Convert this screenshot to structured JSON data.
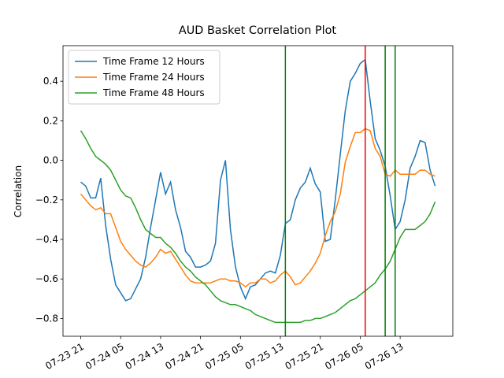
{
  "chart_data": {
    "type": "line",
    "title": "AUD Basket Correlation Plot",
    "y_label": "Correlation",
    "x": [
      "07-23 21",
      "07-23 22",
      "07-23 23",
      "07-24 00",
      "07-24 01",
      "07-24 02",
      "07-24 03",
      "07-24 04",
      "07-24 05",
      "07-24 06",
      "07-24 07",
      "07-24 08",
      "07-24 09",
      "07-24 10",
      "07-24 11",
      "07-24 12",
      "07-24 13",
      "07-24 14",
      "07-24 15",
      "07-24 16",
      "07-24 17",
      "07-24 18",
      "07-24 19",
      "07-24 20",
      "07-24 21",
      "07-24 22",
      "07-24 23",
      "07-25 00",
      "07-25 01",
      "07-25 02",
      "07-25 03",
      "07-25 04",
      "07-25 05",
      "07-25 06",
      "07-25 07",
      "07-25 08",
      "07-25 09",
      "07-25 10",
      "07-25 11",
      "07-25 12",
      "07-25 13",
      "07-25 14",
      "07-25 15",
      "07-25 16",
      "07-25 17",
      "07-25 18",
      "07-25 19",
      "07-25 20",
      "07-25 21",
      "07-25 22",
      "07-25 23",
      "07-26 00",
      "07-26 01",
      "07-26 02",
      "07-26 03",
      "07-26 04",
      "07-26 05",
      "07-26 06",
      "07-26 07",
      "07-26 08",
      "07-26 09",
      "07-26 10",
      "07-26 11",
      "07-26 12",
      "07-26 13",
      "07-26 14",
      "07-26 15",
      "07-26 16",
      "07-26 17",
      "07-26 18",
      "07-26 19",
      "07-26 20"
    ],
    "xticks": [
      "07-23 21",
      "07-24 05",
      "07-24 13",
      "07-24 21",
      "07-25 05",
      "07-25 13",
      "07-25 21",
      "07-26 05",
      "07-26 13"
    ],
    "ylim": [
      -0.89,
      0.58
    ],
    "yticks": [
      {
        "value": -0.8,
        "label": "−0.8"
      },
      {
        "value": -0.6,
        "label": "−0.6"
      },
      {
        "value": -0.4,
        "label": "−0.4"
      },
      {
        "value": -0.2,
        "label": "−0.2"
      },
      {
        "value": 0,
        "label": "0.0"
      },
      0.2,
      0.4
    ],
    "legend": "upper left",
    "series": [
      {
        "name": "Time Frame 12 Hours",
        "color": "#1f77b4",
        "values": [
          -0.11,
          -0.13,
          -0.19,
          -0.19,
          -0.09,
          -0.33,
          -0.5,
          -0.63,
          -0.67,
          -0.71,
          -0.7,
          -0.65,
          -0.6,
          -0.49,
          -0.34,
          -0.2,
          -0.06,
          -0.17,
          -0.11,
          -0.25,
          -0.34,
          -0.46,
          -0.49,
          -0.54,
          -0.54,
          -0.53,
          -0.51,
          -0.42,
          -0.1,
          0.0,
          -0.35,
          -0.54,
          -0.64,
          -0.7,
          -0.64,
          -0.63,
          -0.6,
          -0.57,
          -0.56,
          -0.57,
          -0.48,
          -0.32,
          -0.3,
          -0.2,
          -0.14,
          -0.11,
          -0.04,
          -0.12,
          -0.16,
          -0.41,
          -0.4,
          -0.2,
          0.03,
          0.25,
          0.4,
          0.44,
          0.49,
          0.51,
          0.3,
          0.11,
          0.05,
          -0.03,
          -0.18,
          -0.35,
          -0.31,
          -0.2,
          -0.04,
          0.02,
          0.1,
          0.09,
          -0.05,
          -0.13
        ]
      },
      {
        "name": "Time Frame 24 Hours",
        "color": "#ff7f0e",
        "values": [
          -0.17,
          -0.2,
          -0.23,
          -0.25,
          -0.24,
          -0.27,
          -0.27,
          -0.34,
          -0.41,
          -0.45,
          -0.48,
          -0.51,
          -0.53,
          -0.54,
          -0.52,
          -0.49,
          -0.45,
          -0.47,
          -0.46,
          -0.5,
          -0.54,
          -0.58,
          -0.61,
          -0.62,
          -0.62,
          -0.62,
          -0.62,
          -0.61,
          -0.6,
          -0.6,
          -0.61,
          -0.61,
          -0.62,
          -0.64,
          -0.62,
          -0.62,
          -0.6,
          -0.6,
          -0.62,
          -0.61,
          -0.58,
          -0.56,
          -0.59,
          -0.63,
          -0.62,
          -0.59,
          -0.56,
          -0.52,
          -0.47,
          -0.38,
          -0.31,
          -0.26,
          -0.17,
          -0.01,
          0.07,
          0.14,
          0.14,
          0.16,
          0.15,
          0.06,
          0.02,
          -0.07,
          -0.08,
          -0.05,
          -0.07,
          -0.07,
          -0.07,
          -0.07,
          -0.05,
          -0.05,
          -0.07,
          -0.08
        ]
      },
      {
        "name": "Time Frame 48 Hours",
        "color": "#2ca02c",
        "values": [
          0.15,
          0.11,
          0.06,
          0.02,
          0.0,
          -0.02,
          -0.05,
          -0.1,
          -0.15,
          -0.18,
          -0.19,
          -0.24,
          -0.3,
          -0.35,
          -0.37,
          -0.39,
          -0.39,
          -0.42,
          -0.44,
          -0.47,
          -0.51,
          -0.54,
          -0.56,
          -0.59,
          -0.61,
          -0.63,
          -0.66,
          -0.69,
          -0.71,
          -0.72,
          -0.73,
          -0.73,
          -0.74,
          -0.75,
          -0.76,
          -0.78,
          -0.79,
          -0.8,
          -0.81,
          -0.82,
          -0.82,
          -0.82,
          -0.82,
          -0.82,
          -0.82,
          -0.81,
          -0.81,
          -0.8,
          -0.8,
          -0.79,
          -0.78,
          -0.77,
          -0.75,
          -0.73,
          -0.71,
          -0.7,
          -0.68,
          -0.66,
          -0.64,
          -0.62,
          -0.58,
          -0.55,
          -0.51,
          -0.45,
          -0.39,
          -0.35,
          -0.35,
          -0.35,
          -0.33,
          -0.31,
          -0.27,
          -0.21
        ]
      }
    ],
    "vlines": [
      {
        "x": "07-25 14",
        "color": "green"
      },
      {
        "x": "07-26 06",
        "color": "red"
      },
      {
        "x": "07-26 10",
        "color": "green"
      },
      {
        "x": "07-26 12",
        "color": "green"
      }
    ]
  }
}
